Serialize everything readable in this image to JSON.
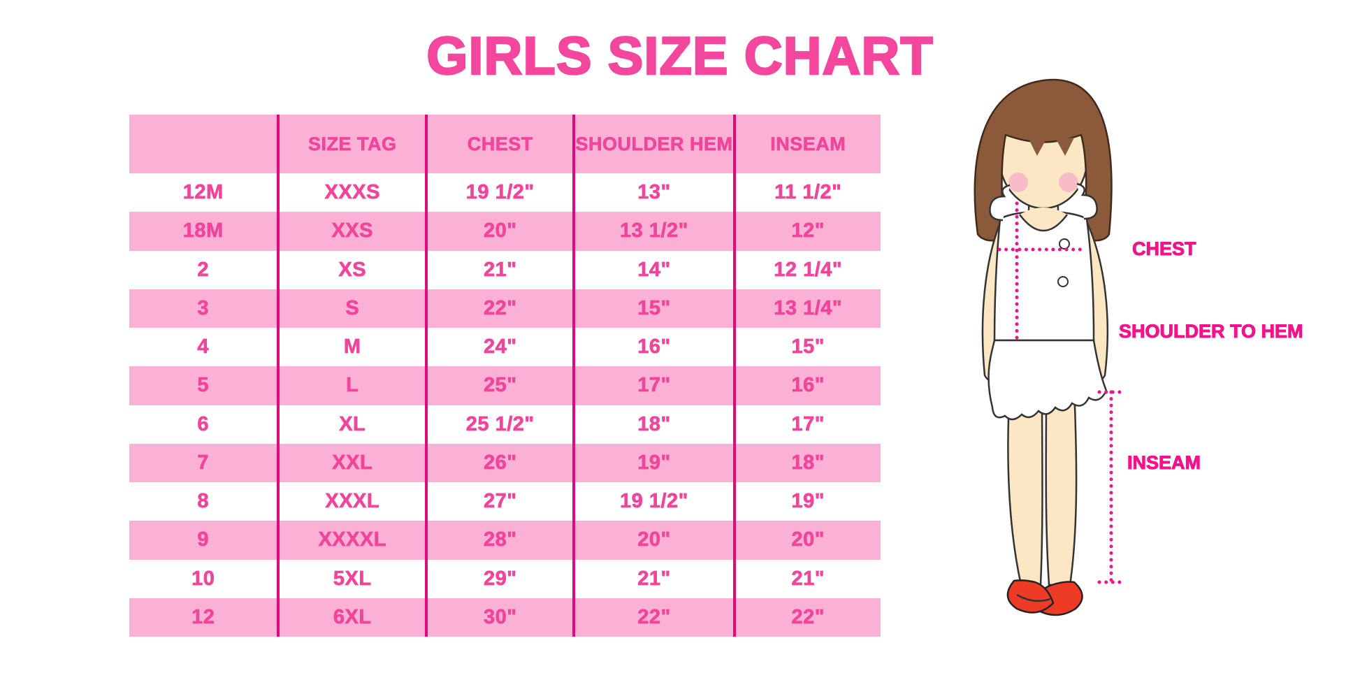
{
  "page": {
    "title": "GIRLS SIZE CHART"
  },
  "colors": {
    "title_pink": "#F2479D",
    "text_pink": "#F0459B",
    "label_magenta": "#F2128C",
    "row_pink": "#FBB1D6",
    "divider_pink": "#DF0A7C",
    "hair_brown": "#8B5A3B",
    "skin": "#FBE7C3",
    "shoe_red": "#EE3B26"
  },
  "chart_data": {
    "type": "table",
    "title": "GIRLS SIZE CHART",
    "columns": [
      "",
      "SIZE TAG",
      "CHEST",
      "SHOULDER HEM",
      "INSEAM"
    ],
    "rows": [
      [
        "12M",
        "XXXS",
        "19 1/2\"",
        "13\"",
        "11 1/2\""
      ],
      [
        "18M",
        "XXS",
        "20\"",
        "13 1/2\"",
        "12\""
      ],
      [
        "2",
        "XS",
        "21\"",
        "14\"",
        "12 1/4\""
      ],
      [
        "3",
        "S",
        "22\"",
        "15\"",
        "13 1/4\""
      ],
      [
        "4",
        "M",
        "24\"",
        "16\"",
        "15\""
      ],
      [
        "5",
        "L",
        "25\"",
        "17\"",
        "16\""
      ],
      [
        "6",
        "XL",
        "25 1/2\"",
        "18\"",
        "17\""
      ],
      [
        "7",
        "XXL",
        "26\"",
        "19\"",
        "18\""
      ],
      [
        "8",
        "XXXL",
        "27\"",
        "19 1/2\"",
        "19\""
      ],
      [
        "9",
        "XXXXL",
        "28\"",
        "20\"",
        "20\""
      ],
      [
        "10",
        "5XL",
        "29\"",
        "21\"",
        "21\""
      ],
      [
        "12",
        "6XL",
        "30\"",
        "22\"",
        "22\""
      ]
    ],
    "layout": {
      "zebra_rows": true,
      "header_background": "pink",
      "gridlines": "vertical-only"
    }
  },
  "figure": {
    "labels": {
      "chest": "CHEST",
      "shoulder_to_hem": "SHOULDER TO HEM",
      "inseam": "INSEAM"
    }
  }
}
